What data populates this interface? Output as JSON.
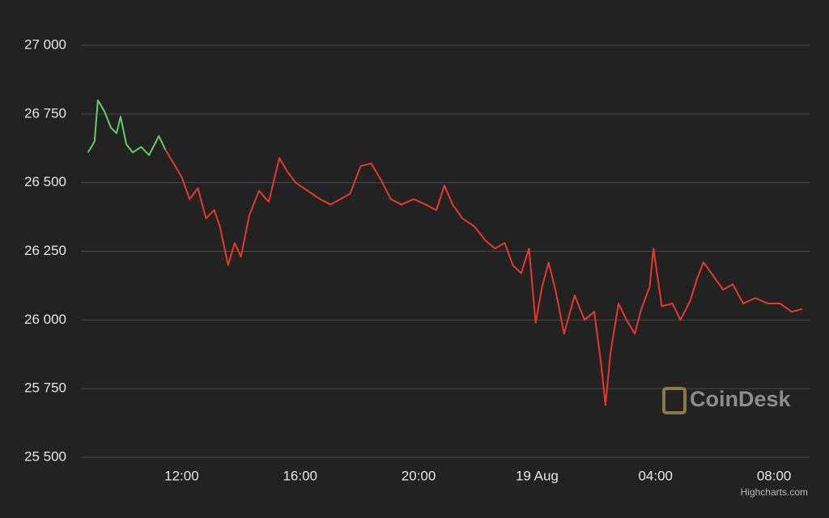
{
  "chart_data": {
    "type": "line",
    "xlim": [
      8.6,
      33.2
    ],
    "ylim": [
      25500,
      27000
    ],
    "yticks": [
      {
        "value": 25500,
        "label": "25 500"
      },
      {
        "value": 25750,
        "label": "25 750"
      },
      {
        "value": 26000,
        "label": "26 000"
      },
      {
        "value": 26250,
        "label": "26 250"
      },
      {
        "value": 26500,
        "label": "26 500"
      },
      {
        "value": 26750,
        "label": "26 750"
      },
      {
        "value": 27000,
        "label": "27 000"
      }
    ],
    "xticks": [
      {
        "value": 12,
        "label": "12:00"
      },
      {
        "value": 16,
        "label": "16:00"
      },
      {
        "value": 20,
        "label": "20:00"
      },
      {
        "value": 24,
        "label": "19 Aug"
      },
      {
        "value": 28,
        "label": "04:00"
      },
      {
        "value": 32,
        "label": "08:00"
      }
    ],
    "grid": true,
    "watermark": "CoinDesk",
    "credits": "Highcharts.com",
    "series": [
      {
        "color": "#5fd068",
        "x": [
          8.84,
          9.06,
          9.17,
          9.39,
          9.61,
          9.8,
          9.94,
          10.13,
          10.35,
          10.63,
          10.9,
          11.23,
          11.45
        ],
        "values": [
          26610,
          26650,
          26800,
          26760,
          26700,
          26680,
          26740,
          26640,
          26610,
          26630,
          26600,
          26670,
          26620
        ]
      },
      {
        "color": "#e5392b",
        "x": [
          11.45,
          11.73,
          12.0,
          12.27,
          12.55,
          12.82,
          13.1,
          13.29,
          13.57,
          13.79,
          14.0,
          14.28,
          14.61,
          14.94,
          15.3,
          15.57,
          15.85,
          16.26,
          16.67,
          17.03,
          17.36,
          17.69,
          18.04,
          18.4,
          18.73,
          19.06,
          19.42,
          19.83,
          20.24,
          20.6,
          20.87,
          21.15,
          21.48,
          21.89,
          22.25,
          22.58,
          22.91,
          23.18,
          23.46,
          23.73,
          23.95,
          24.17,
          24.39,
          24.64,
          24.91,
          25.27,
          25.6,
          25.93,
          26.15,
          26.31,
          26.48,
          26.75,
          27.02,
          27.3,
          27.52,
          27.8,
          27.93,
          28.21,
          28.57,
          28.84,
          29.17,
          29.4,
          29.62,
          29.95,
          30.28,
          30.61,
          30.96,
          31.37,
          31.79,
          32.2,
          32.6,
          32.96
        ],
        "values": [
          26620,
          26570,
          26520,
          26440,
          26480,
          26370,
          26400,
          26340,
          26200,
          26280,
          26230,
          26380,
          26470,
          26430,
          26590,
          26540,
          26500,
          26470,
          26440,
          26420,
          26440,
          26460,
          26560,
          26570,
          26510,
          26440,
          26420,
          26440,
          26420,
          26400,
          26490,
          26420,
          26370,
          26340,
          26290,
          26260,
          26280,
          26200,
          26170,
          26260,
          25990,
          26120,
          26210,
          26100,
          25950,
          26090,
          26000,
          26030,
          25850,
          25690,
          25880,
          26060,
          26000,
          25950,
          26040,
          26120,
          26260,
          26050,
          26060,
          26000,
          26070,
          26150,
          26210,
          26160,
          26110,
          26130,
          26060,
          26080,
          26060,
          26060,
          26030,
          26040
        ]
      }
    ]
  }
}
